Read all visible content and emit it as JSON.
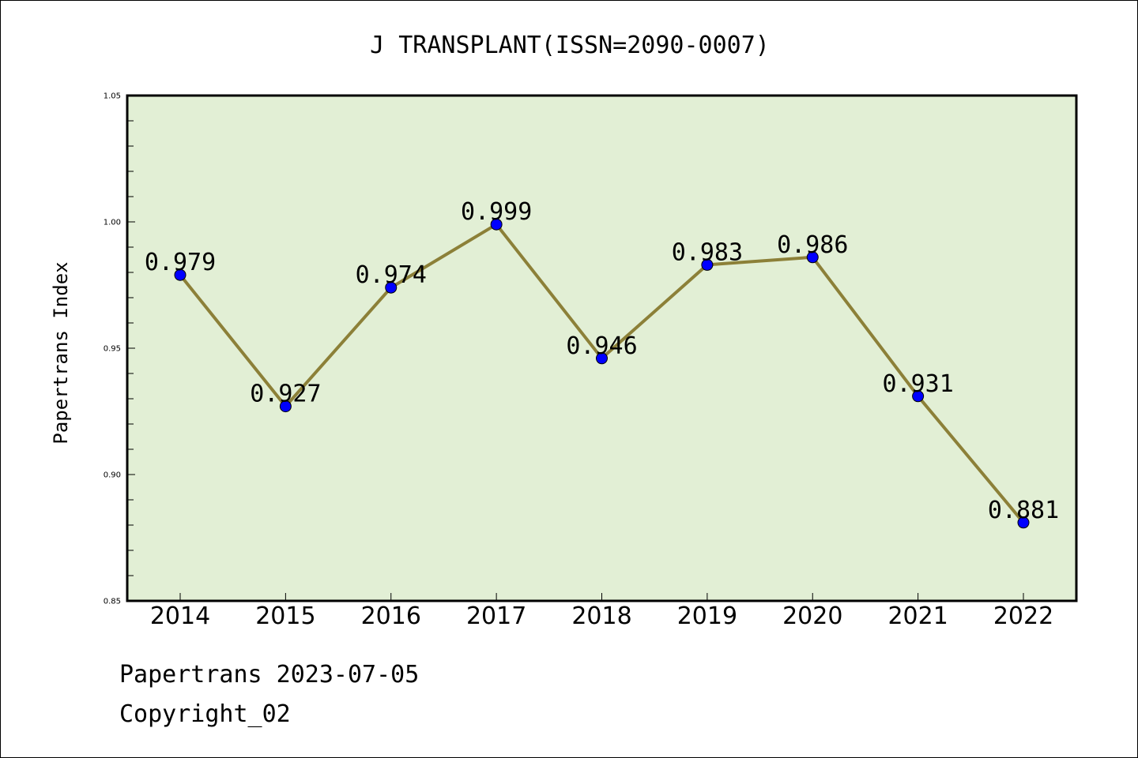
{
  "chart_data": {
    "type": "line",
    "title": "J TRANSPLANT(ISSN=2090-0007)",
    "xlabel": "",
    "ylabel": "Papertrans Index",
    "categories": [
      "2014",
      "2015",
      "2016",
      "2017",
      "2018",
      "2019",
      "2020",
      "2021",
      "2022"
    ],
    "series": [
      {
        "values": [
          0.979,
          0.927,
          0.974,
          0.999,
          0.946,
          0.983,
          0.986,
          0.931,
          0.881
        ],
        "data_labels": [
          "0.979",
          "0.927",
          "0.974",
          "0.999",
          "0.946",
          "0.983",
          "0.986",
          "0.931",
          "0.881"
        ]
      }
    ],
    "ylim": [
      0.85,
      1.05
    ],
    "yticks": [
      0.85,
      0.9,
      0.95,
      1.0,
      1.05
    ],
    "ytick_labels": [
      "0.85",
      "0.90",
      "0.95",
      "1.00",
      "1.05"
    ],
    "grid": false,
    "legend": "none"
  },
  "colors": {
    "plot_background": "#e2efd5",
    "line": "#8c8038",
    "marker": "#0000ff",
    "axis": "#000000"
  },
  "footer": {
    "date_text": "Papertrans 2023-07-05",
    "copyright_text": "Copyright_02"
  }
}
